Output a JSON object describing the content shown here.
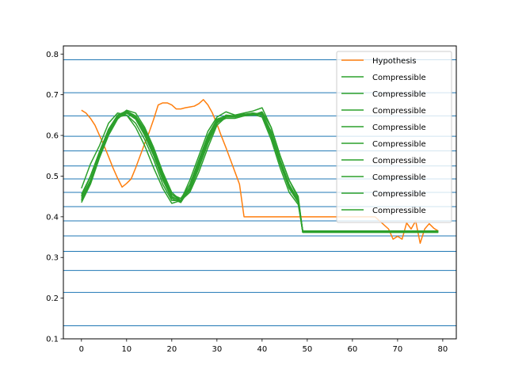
{
  "chart_data": {
    "type": "line",
    "title": "",
    "xlabel": "",
    "ylabel": "",
    "xlim": [
      -4,
      83
    ],
    "ylim": [
      0.1,
      0.82
    ],
    "x_ticks": [
      0,
      10,
      20,
      30,
      40,
      50,
      60,
      70,
      80
    ],
    "y_ticks": [
      0.1,
      0.2,
      0.3,
      0.4,
      0.5,
      0.6,
      0.7,
      0.8
    ],
    "x_tick_labels": [
      "0",
      "10",
      "20",
      "30",
      "40",
      "50",
      "60",
      "70",
      "80"
    ],
    "y_tick_labels": [
      "0.1",
      "0.2",
      "0.3",
      "0.4",
      "0.5",
      "0.6",
      "0.7",
      "0.8"
    ],
    "legend_position": "top-right",
    "grid": false,
    "colors": {
      "hypothesis": "#ff7f0e",
      "compressible": "#2ca02c",
      "hlines": "#1f77b4"
    },
    "hlines": [
      0.132,
      0.214,
      0.268,
      0.315,
      0.353,
      0.39,
      0.425,
      0.46,
      0.493,
      0.525,
      0.562,
      0.598,
      0.648,
      0.705,
      0.786
    ],
    "series": [
      {
        "name": "Hypothesis",
        "color": "#ff7f0e",
        "x": [
          0,
          1,
          2,
          3,
          4,
          5,
          6,
          7,
          8,
          9,
          10,
          11,
          12,
          13,
          14,
          15,
          16,
          17,
          18,
          19,
          20,
          21,
          22,
          23,
          24,
          25,
          26,
          27,
          28,
          29,
          30,
          31,
          32,
          33,
          34,
          35,
          36,
          37,
          38,
          39,
          40,
          45,
          50,
          55,
          60,
          65,
          68,
          69,
          70,
          71,
          72,
          73,
          74,
          75,
          76,
          77,
          78,
          79
        ],
        "y": [
          0.662,
          0.655,
          0.642,
          0.625,
          0.6,
          0.575,
          0.548,
          0.52,
          0.495,
          0.473,
          0.482,
          0.493,
          0.52,
          0.55,
          0.58,
          0.608,
          0.64,
          0.675,
          0.68,
          0.68,
          0.675,
          0.665,
          0.665,
          0.668,
          0.67,
          0.672,
          0.678,
          0.688,
          0.675,
          0.655,
          0.628,
          0.598,
          0.57,
          0.54,
          0.51,
          0.48,
          0.4,
          0.4,
          0.4,
          0.4,
          0.4,
          0.4,
          0.4,
          0.4,
          0.4,
          0.4,
          0.37,
          0.345,
          0.352,
          0.345,
          0.385,
          0.37,
          0.39,
          0.335,
          0.37,
          0.383,
          0.372,
          0.365
        ]
      },
      {
        "name": "Compressible",
        "color": "#2ca02c",
        "x": [
          0,
          2,
          4,
          6,
          8,
          10,
          12,
          14,
          16,
          18,
          20,
          22,
          24,
          26,
          28,
          30,
          32,
          34,
          36,
          38,
          40,
          42,
          44,
          46,
          48,
          49,
          55,
          60,
          65,
          70,
          75,
          79
        ],
        "y": [
          0.44,
          0.49,
          0.55,
          0.61,
          0.645,
          0.65,
          0.63,
          0.59,
          0.54,
          0.48,
          0.44,
          0.44,
          0.48,
          0.54,
          0.6,
          0.64,
          0.648,
          0.648,
          0.652,
          0.652,
          0.645,
          0.59,
          0.52,
          0.46,
          0.43,
          0.365,
          0.365,
          0.365,
          0.365,
          0.365,
          0.365,
          0.365
        ]
      },
      {
        "name": "Compressible",
        "color": "#2ca02c",
        "x": [
          0,
          2,
          4,
          6,
          8,
          10,
          12,
          14,
          16,
          18,
          20,
          22,
          24,
          26,
          28,
          30,
          32,
          34,
          36,
          38,
          40,
          42,
          44,
          46,
          48,
          49,
          55,
          60,
          65,
          70,
          75,
          79
        ],
        "y": [
          0.45,
          0.5,
          0.56,
          0.615,
          0.648,
          0.655,
          0.64,
          0.6,
          0.55,
          0.49,
          0.445,
          0.435,
          0.47,
          0.53,
          0.59,
          0.635,
          0.645,
          0.645,
          0.65,
          0.655,
          0.65,
          0.6,
          0.53,
          0.47,
          0.435,
          0.362,
          0.362,
          0.362,
          0.362,
          0.362,
          0.362,
          0.362
        ]
      },
      {
        "name": "Compressible",
        "color": "#2ca02c",
        "x": [
          0,
          2,
          4,
          6,
          8,
          10,
          12,
          14,
          16,
          18,
          20,
          22,
          24,
          26,
          28,
          30,
          32,
          34,
          36,
          38,
          40,
          42,
          44,
          46,
          48,
          49,
          55,
          60,
          65,
          70,
          75,
          79
        ],
        "y": [
          0.435,
          0.48,
          0.545,
          0.6,
          0.64,
          0.66,
          0.645,
          0.61,
          0.56,
          0.5,
          0.455,
          0.44,
          0.465,
          0.52,
          0.58,
          0.63,
          0.65,
          0.648,
          0.648,
          0.652,
          0.655,
          0.61,
          0.54,
          0.48,
          0.44,
          0.365,
          0.365,
          0.365,
          0.365,
          0.365,
          0.365,
          0.365
        ]
      },
      {
        "name": "Compressible",
        "color": "#2ca02c",
        "x": [
          0,
          2,
          4,
          6,
          8,
          10,
          12,
          14,
          16,
          18,
          20,
          22,
          24,
          26,
          28,
          30,
          32,
          34,
          36,
          38,
          40,
          42,
          44,
          46,
          48,
          49,
          55,
          60,
          65,
          70,
          75,
          79
        ],
        "y": [
          0.44,
          0.485,
          0.55,
          0.605,
          0.645,
          0.662,
          0.655,
          0.62,
          0.57,
          0.51,
          0.46,
          0.44,
          0.46,
          0.51,
          0.57,
          0.625,
          0.645,
          0.65,
          0.652,
          0.65,
          0.658,
          0.62,
          0.55,
          0.49,
          0.445,
          0.362,
          0.362,
          0.362,
          0.362,
          0.362,
          0.362,
          0.362
        ]
      },
      {
        "name": "Compressible",
        "color": "#2ca02c",
        "x": [
          0,
          2,
          4,
          6,
          8,
          10,
          12,
          14,
          16,
          18,
          20,
          22,
          24,
          26,
          28,
          30,
          32,
          34,
          36,
          38,
          40,
          42,
          44,
          46,
          48,
          49,
          55,
          60,
          65,
          70,
          75,
          79
        ],
        "y": [
          0.445,
          0.49,
          0.553,
          0.61,
          0.645,
          0.658,
          0.648,
          0.615,
          0.565,
          0.505,
          0.45,
          0.438,
          0.47,
          0.525,
          0.585,
          0.632,
          0.642,
          0.642,
          0.648,
          0.65,
          0.655,
          0.605,
          0.535,
          0.475,
          0.438,
          0.365,
          0.365,
          0.365,
          0.365,
          0.365,
          0.365,
          0.365
        ]
      },
      {
        "name": "Compressible",
        "color": "#2ca02c",
        "x": [
          0,
          2,
          4,
          6,
          8,
          10,
          12,
          14,
          16,
          18,
          20,
          22,
          24,
          26,
          28,
          30,
          32,
          34,
          36,
          38,
          40,
          42,
          44,
          46,
          48,
          49,
          55,
          60,
          65,
          70,
          75,
          79
        ],
        "y": [
          0.47,
          0.53,
          0.575,
          0.63,
          0.655,
          0.65,
          0.62,
          0.575,
          0.52,
          0.47,
          0.433,
          0.44,
          0.49,
          0.55,
          0.61,
          0.645,
          0.658,
          0.65,
          0.655,
          0.66,
          0.668,
          0.62,
          0.55,
          0.49,
          0.45,
          0.362,
          0.362,
          0.362,
          0.362,
          0.362,
          0.362,
          0.362
        ]
      },
      {
        "name": "Compressible",
        "color": "#2ca02c",
        "x": [
          0,
          2,
          4,
          6,
          8,
          10,
          12,
          14,
          16,
          18,
          20,
          22,
          24,
          26,
          28,
          30,
          32,
          34,
          36,
          38,
          40,
          42,
          44,
          46,
          48,
          49,
          55,
          60,
          65,
          70,
          75,
          79
        ],
        "y": [
          0.44,
          0.49,
          0.55,
          0.608,
          0.643,
          0.655,
          0.645,
          0.612,
          0.56,
          0.5,
          0.45,
          0.437,
          0.467,
          0.523,
          0.583,
          0.63,
          0.648,
          0.648,
          0.65,
          0.65,
          0.652,
          0.602,
          0.535,
          0.475,
          0.44,
          0.365,
          0.365,
          0.365,
          0.365,
          0.365,
          0.365,
          0.365
        ]
      },
      {
        "name": "Compressible",
        "color": "#2ca02c",
        "x": [
          0,
          2,
          4,
          6,
          8,
          10,
          12,
          14,
          16,
          18,
          20,
          22,
          24,
          26,
          28,
          30,
          32,
          34,
          36,
          38,
          40,
          42,
          44,
          46,
          48,
          49,
          55,
          60,
          65,
          70,
          75,
          79
        ],
        "y": [
          0.45,
          0.5,
          0.558,
          0.612,
          0.648,
          0.657,
          0.643,
          0.605,
          0.555,
          0.495,
          0.448,
          0.44,
          0.472,
          0.528,
          0.588,
          0.634,
          0.646,
          0.646,
          0.65,
          0.653,
          0.65,
          0.598,
          0.53,
          0.47,
          0.437,
          0.362,
          0.362,
          0.362,
          0.362,
          0.362,
          0.362,
          0.362
        ]
      },
      {
        "name": "Compressible",
        "color": "#2ca02c",
        "x": [
          0,
          2,
          4,
          6,
          8,
          10,
          12,
          14,
          16,
          18,
          20,
          22,
          24,
          26,
          28,
          30,
          32,
          34,
          36,
          38,
          40,
          42,
          44,
          46,
          48,
          49,
          55,
          60,
          65,
          70,
          75,
          79
        ],
        "y": [
          0.455,
          0.5,
          0.56,
          0.615,
          0.65,
          0.66,
          0.648,
          0.615,
          0.565,
          0.505,
          0.455,
          0.445,
          0.478,
          0.535,
          0.595,
          0.638,
          0.648,
          0.648,
          0.652,
          0.655,
          0.652,
          0.6,
          0.532,
          0.472,
          0.44,
          0.365,
          0.365,
          0.365,
          0.365,
          0.365,
          0.365,
          0.365
        ]
      }
    ]
  }
}
